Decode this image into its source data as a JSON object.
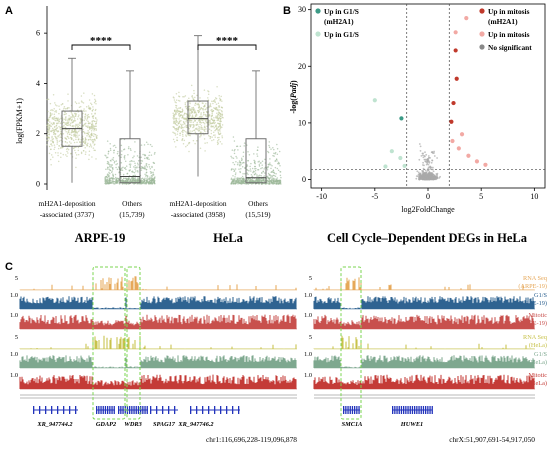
{
  "panels": {
    "a": "A",
    "b": "B",
    "c": "C"
  },
  "colors": {
    "mh2a1_points": "#c3cda2",
    "others_points": "#9cb99a",
    "box": "#6f6f6f",
    "volcano_gray": "#aaaaaa",
    "mitosis_mh2a1": "#c0392b",
    "mitosis": "#f2a9a4",
    "g1s_mh2a1": "#3c9a86",
    "g1s": "#bfe3d0",
    "rna_arpe": "#e6a85a",
    "g1s_arpe": "#2f6391",
    "mitotic_arpe": "#c8504d",
    "rna_hela": "#c8c24b",
    "g1s_hela": "#7ea88f",
    "mitotic_hela": "#c43b37",
    "gene": "#2233bb",
    "highlight": "#7bd651"
  },
  "chart_data": [
    {
      "type": "box",
      "ylabel": "log(FPKM+1)",
      "ylim": [
        0,
        7
      ],
      "yticks": [
        0,
        2,
        4,
        6
      ],
      "groups": [
        {
          "cell_line": "ARPE-19",
          "boxes": [
            {
              "label_line1": "mH2A1-deposition",
              "label_line2": "-associated",
              "count": "(3737)",
              "whisker_low": 0.05,
              "q1": 1.5,
              "median": 2.2,
              "q3": 2.9,
              "whisker_high": 5.0,
              "color": "#c3cda2"
            },
            {
              "label_line1": "Others",
              "label_line2": "",
              "count": "(15,739)",
              "whisker_low": 0.0,
              "q1": 0.05,
              "median": 0.3,
              "q3": 1.8,
              "whisker_high": 4.5,
              "color": "#9cb99a"
            }
          ],
          "significance": "****"
        },
        {
          "cell_line": "HeLa",
          "boxes": [
            {
              "label_line1": "mH2A1-deposition",
              "label_line2": "-associated",
              "count": "(3958)",
              "whisker_low": 0.3,
              "q1": 2.0,
              "median": 2.6,
              "q3": 3.3,
              "whisker_high": 5.9,
              "color": "#c3cda2"
            },
            {
              "label_line1": "Others",
              "label_line2": "",
              "count": "(15,519)",
              "whisker_low": 0.0,
              "q1": 0.05,
              "median": 0.25,
              "q3": 1.8,
              "whisker_high": 4.5,
              "color": "#9cb99a"
            }
          ],
          "significance": "****"
        }
      ]
    },
    {
      "type": "scatter",
      "title": "Cell Cycle–Dependent DEGs in HeLa",
      "xlabel": "log2FoldChange",
      "ylabel_prefix": "-log(",
      "ylabel_italic": "Padj",
      "ylabel_suffix": ")",
      "xlim": [
        -11,
        11
      ],
      "ylim": [
        -1.5,
        31
      ],
      "xticks": [
        -10,
        -5,
        0,
        5,
        10
      ],
      "yticks": [
        0,
        10,
        20,
        30
      ],
      "thresholds": {
        "x": [
          -2,
          2
        ],
        "y": 1.8
      },
      "legend_left": [
        {
          "label": "Up in G1/S",
          "label2": "(mH2A1)",
          "color": "#3c9a86"
        },
        {
          "label": "Up in G1/S",
          "label2": "",
          "color": "#bfe3d0"
        }
      ],
      "legend_right": [
        {
          "label": "Up in mitosis",
          "label2": "(mH2A1)",
          "color": "#c0392b"
        },
        {
          "label": "Up in mitosis",
          "label2": "",
          "color": "#f2a9a4"
        },
        {
          "label": "No significant",
          "label2": "",
          "color": "#888888"
        }
      ],
      "points": [
        {
          "x": 2.6,
          "y": 22.8,
          "cls": "mitosis_mh2a1"
        },
        {
          "x": 2.7,
          "y": 17.8,
          "cls": "mitosis_mh2a1"
        },
        {
          "x": 2.4,
          "y": 13.5,
          "cls": "mitosis_mh2a1"
        },
        {
          "x": 2.2,
          "y": 10.2,
          "cls": "mitosis_mh2a1"
        },
        {
          "x": 2.6,
          "y": 26.0,
          "cls": "mitosis"
        },
        {
          "x": 3.6,
          "y": 28.5,
          "cls": "mitosis"
        },
        {
          "x": 3.2,
          "y": 8.0,
          "cls": "mitosis"
        },
        {
          "x": 2.9,
          "y": 5.5,
          "cls": "mitosis"
        },
        {
          "x": 3.8,
          "y": 4.2,
          "cls": "mitosis"
        },
        {
          "x": 4.6,
          "y": 3.2,
          "cls": "mitosis"
        },
        {
          "x": 5.4,
          "y": 2.6,
          "cls": "mitosis"
        },
        {
          "x": 2.3,
          "y": 6.8,
          "cls": "mitosis"
        },
        {
          "x": -2.5,
          "y": 10.8,
          "cls": "g1s_mh2a1"
        },
        {
          "x": -5.0,
          "y": 14.0,
          "cls": "g1s"
        },
        {
          "x": -3.4,
          "y": 5.0,
          "cls": "g1s"
        },
        {
          "x": -2.6,
          "y": 3.8,
          "cls": "g1s"
        },
        {
          "x": -2.2,
          "y": 2.4,
          "cls": "g1s"
        },
        {
          "x": -4.0,
          "y": 2.3,
          "cls": "g1s"
        }
      ]
    },
    {
      "type": "genome_tracks",
      "regions": [
        {
          "coords": "chr1:116,696,228-119,096,878",
          "genes": [
            "XR_947744.2",
            "GDAP2",
            "WDR3",
            "SPAG17",
            "XR_947746.2"
          ]
        },
        {
          "coords": "chrX:51,907,691-54,917,050",
          "genes": [
            "SMC1A",
            "HUWE1"
          ]
        }
      ],
      "tracks": [
        {
          "name": "RNA Seq",
          "cell": "(ARPE-19)",
          "scale_max": "5",
          "scale_min": "0",
          "color_key": "rna_arpe",
          "kind": "rna"
        },
        {
          "name": "G1/S",
          "cell": "(ARPE-19)",
          "scale_max": "1.0",
          "scale_min": "0",
          "color_key": "g1s_arpe",
          "kind": "chip"
        },
        {
          "name": "Mitotic",
          "cell": "(ARPE-19)",
          "scale_max": "1.0",
          "scale_min": "0",
          "color_key": "mitotic_arpe",
          "kind": "chip"
        },
        {
          "name": "RNA Seq",
          "cell": "(HeLa)",
          "scale_max": "5",
          "scale_min": "0",
          "color_key": "rna_hela",
          "kind": "rna"
        },
        {
          "name": "G1/S",
          "cell": "(HeLa)",
          "scale_max": "1.0",
          "scale_min": "0",
          "color_key": "g1s_hela",
          "kind": "chip"
        },
        {
          "name": "Mitotic",
          "cell": "(HeLa)",
          "scale_max": "1.0",
          "scale_min": "0",
          "color_key": "mitotic_hela",
          "kind": "chip"
        }
      ]
    }
  ]
}
